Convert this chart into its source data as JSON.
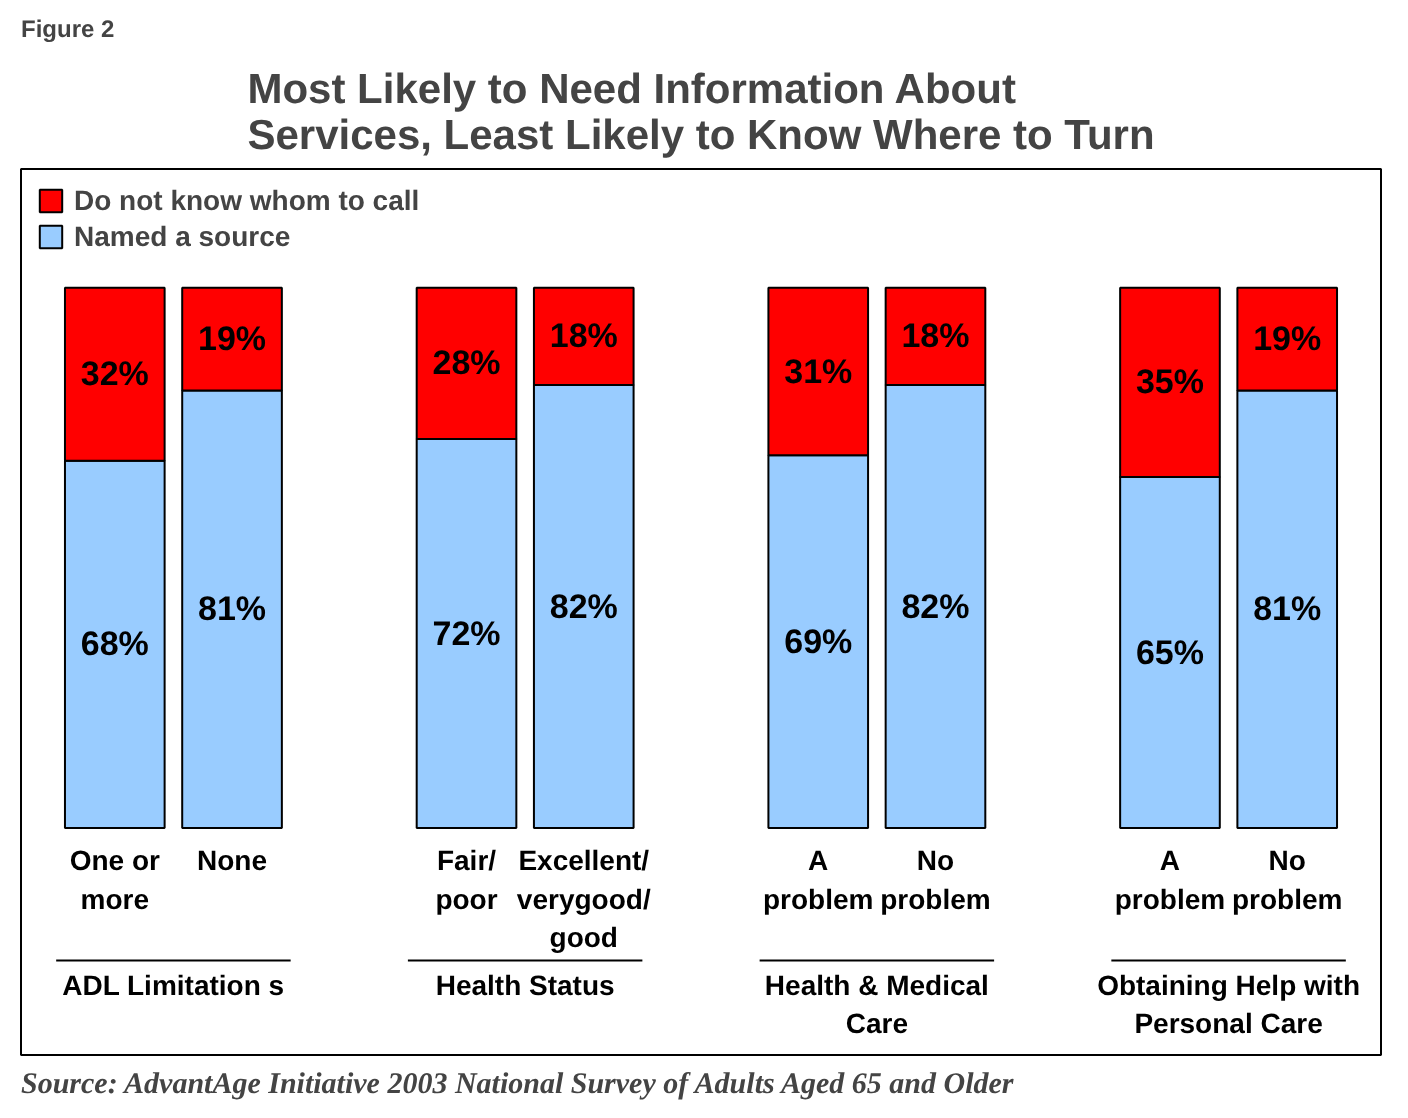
{
  "chart_data": {
    "type": "bar",
    "title": "Most Likely to Need Information About\nServices, Least Likely to Know Where to Turn",
    "subtitle": "Figure 2",
    "categories": [
      "One or\nmore",
      "None",
      null,
      "Fair/\npoor",
      "Excellent/\nverygood/\ngood",
      null,
      "A\nproblem",
      "No\nproblem",
      null,
      "A\nproblem",
      "No\nproblem"
    ],
    "stacked": true,
    "legend": "top left",
    "series": [
      {
        "name": "Named a source",
        "color": "#99ccff",
        "values": [
          68,
          81,
          null,
          72,
          82,
          null,
          69,
          82,
          null,
          65,
          81
        ],
        "value_labels": [
          "68%",
          "81%",
          null,
          "72%",
          "82%",
          null,
          "69%",
          "82%",
          null,
          "65%",
          "81%"
        ]
      },
      {
        "name": "Do not know whom to call",
        "color": "#ff0000",
        "values": [
          32,
          19,
          null,
          28,
          18,
          null,
          31,
          18,
          null,
          35,
          19
        ],
        "value_labels": [
          "32%",
          "19%",
          null,
          "28%",
          "18%",
          null,
          "31%",
          "18%",
          null,
          "35%",
          "19%"
        ]
      }
    ],
    "annotations": [
      "ADL Limitation s",
      "Health Status",
      "Health & Medical\nCare",
      "Obtaining Help with\nPersonal Care",
      "Source: AdvantAge Initiative 2003 National Survey of Adults Aged 65 and Older"
    ]
  }
}
